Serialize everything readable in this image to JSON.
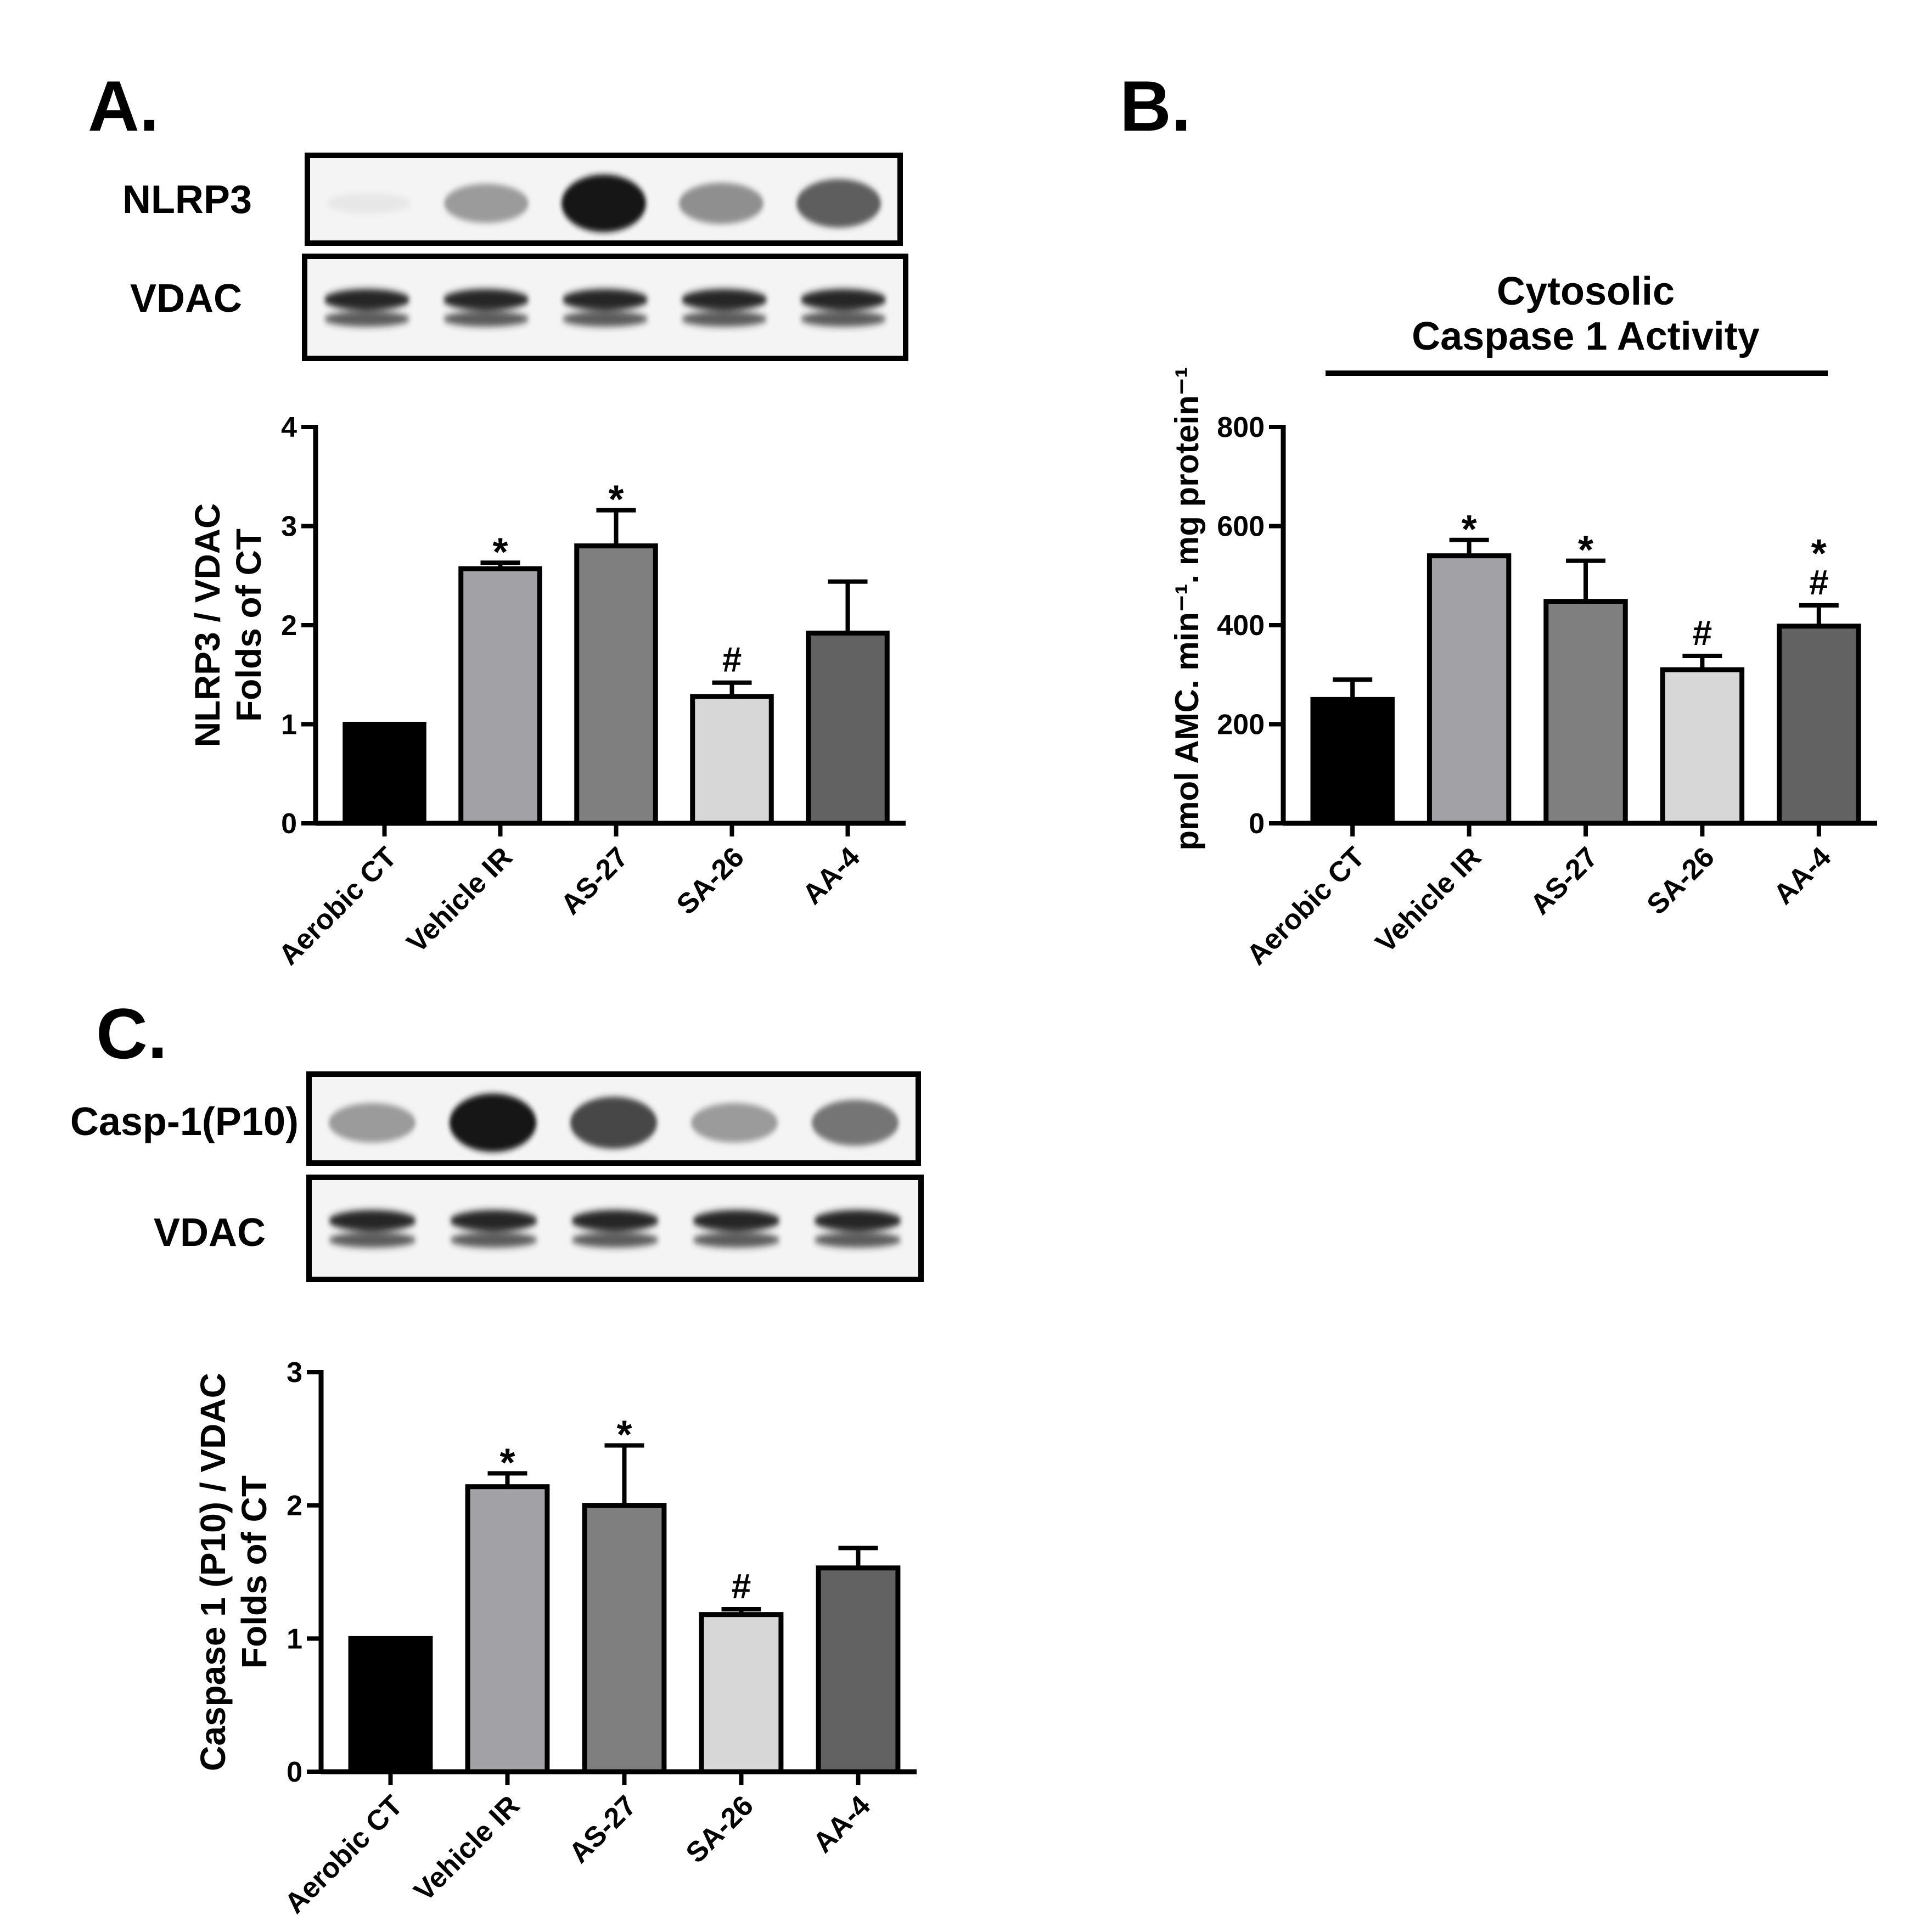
{
  "panels": {
    "a": {
      "letter": "A.",
      "blots": [
        {
          "label": "NLRP3",
          "bands": [
            0.08,
            0.55,
            1.0,
            0.6,
            0.78
          ],
          "doublet": false
        },
        {
          "label": "VDAC",
          "bands": [
            0.9,
            0.9,
            0.9,
            0.9,
            0.9
          ],
          "doublet": true
        }
      ]
    },
    "b": {
      "letter": "B."
    },
    "c": {
      "letter": "C.",
      "blots": [
        {
          "label": "Casp-1(P10)",
          "bands": [
            0.55,
            1.0,
            0.85,
            0.55,
            0.7
          ],
          "doublet": false
        },
        {
          "label": "VDAC",
          "bands": [
            0.9,
            0.9,
            0.9,
            0.9,
            0.9
          ],
          "doublet": true
        }
      ]
    }
  },
  "chart_data": [
    {
      "type": "bar",
      "panel": "A",
      "title": "",
      "ylabel_lines": [
        "NLRP3 / VDAC",
        "Folds of CT"
      ],
      "ylim": [
        0,
        4
      ],
      "yticks": [
        0,
        1,
        2,
        3,
        4
      ],
      "categories": [
        "Aerobic CT",
        "Vehicle IR",
        "AS-27",
        "SA-26",
        "AA-4"
      ],
      "values": [
        1.0,
        2.57,
        2.8,
        1.28,
        1.92
      ],
      "errors": [
        0,
        0.06,
        0.36,
        0.14,
        0.52
      ],
      "annotations": [
        "",
        "*",
        "*",
        "#",
        ""
      ],
      "colors": [
        "#000000",
        "#a1a1a6",
        "#7f7f7f",
        "#d7d7d7",
        "#626262"
      ]
    },
    {
      "type": "bar",
      "panel": "B",
      "title_lines": [
        "Cytosolic",
        "Caspase 1 Activity"
      ],
      "ylabel": "pmol AMC. min⁻¹. mg protein⁻¹",
      "ylim": [
        0,
        800
      ],
      "yticks": [
        0,
        200,
        400,
        600,
        800
      ],
      "categories": [
        "Aerobic CT",
        "Vehicle IR",
        "AS-27",
        "SA-26",
        "AA-4"
      ],
      "values": [
        250,
        540,
        448,
        310,
        398
      ],
      "errors": [
        40,
        32,
        82,
        28,
        42
      ],
      "annotations": [
        "",
        "*",
        "*",
        "#",
        "*\n#"
      ],
      "colors": [
        "#000000",
        "#a1a1a6",
        "#7f7f7f",
        "#d7d7d7",
        "#626262"
      ]
    },
    {
      "type": "bar",
      "panel": "C",
      "title": "",
      "ylabel_lines": [
        "Caspase 1 (P10) / VDAC",
        "Folds of CT"
      ],
      "ylim": [
        0,
        3
      ],
      "yticks": [
        0,
        1,
        2,
        3
      ],
      "categories": [
        "Aerobic CT",
        "Vehicle IR",
        "AS-27",
        "SA-26",
        "AA-4"
      ],
      "values": [
        1.0,
        2.14,
        2.0,
        1.18,
        1.53
      ],
      "errors": [
        0,
        0.1,
        0.45,
        0.04,
        0.15
      ],
      "annotations": [
        "",
        "*",
        "*",
        "#",
        ""
      ],
      "colors": [
        "#000000",
        "#a1a1a6",
        "#7f7f7f",
        "#d7d7d7",
        "#626262"
      ]
    }
  ]
}
